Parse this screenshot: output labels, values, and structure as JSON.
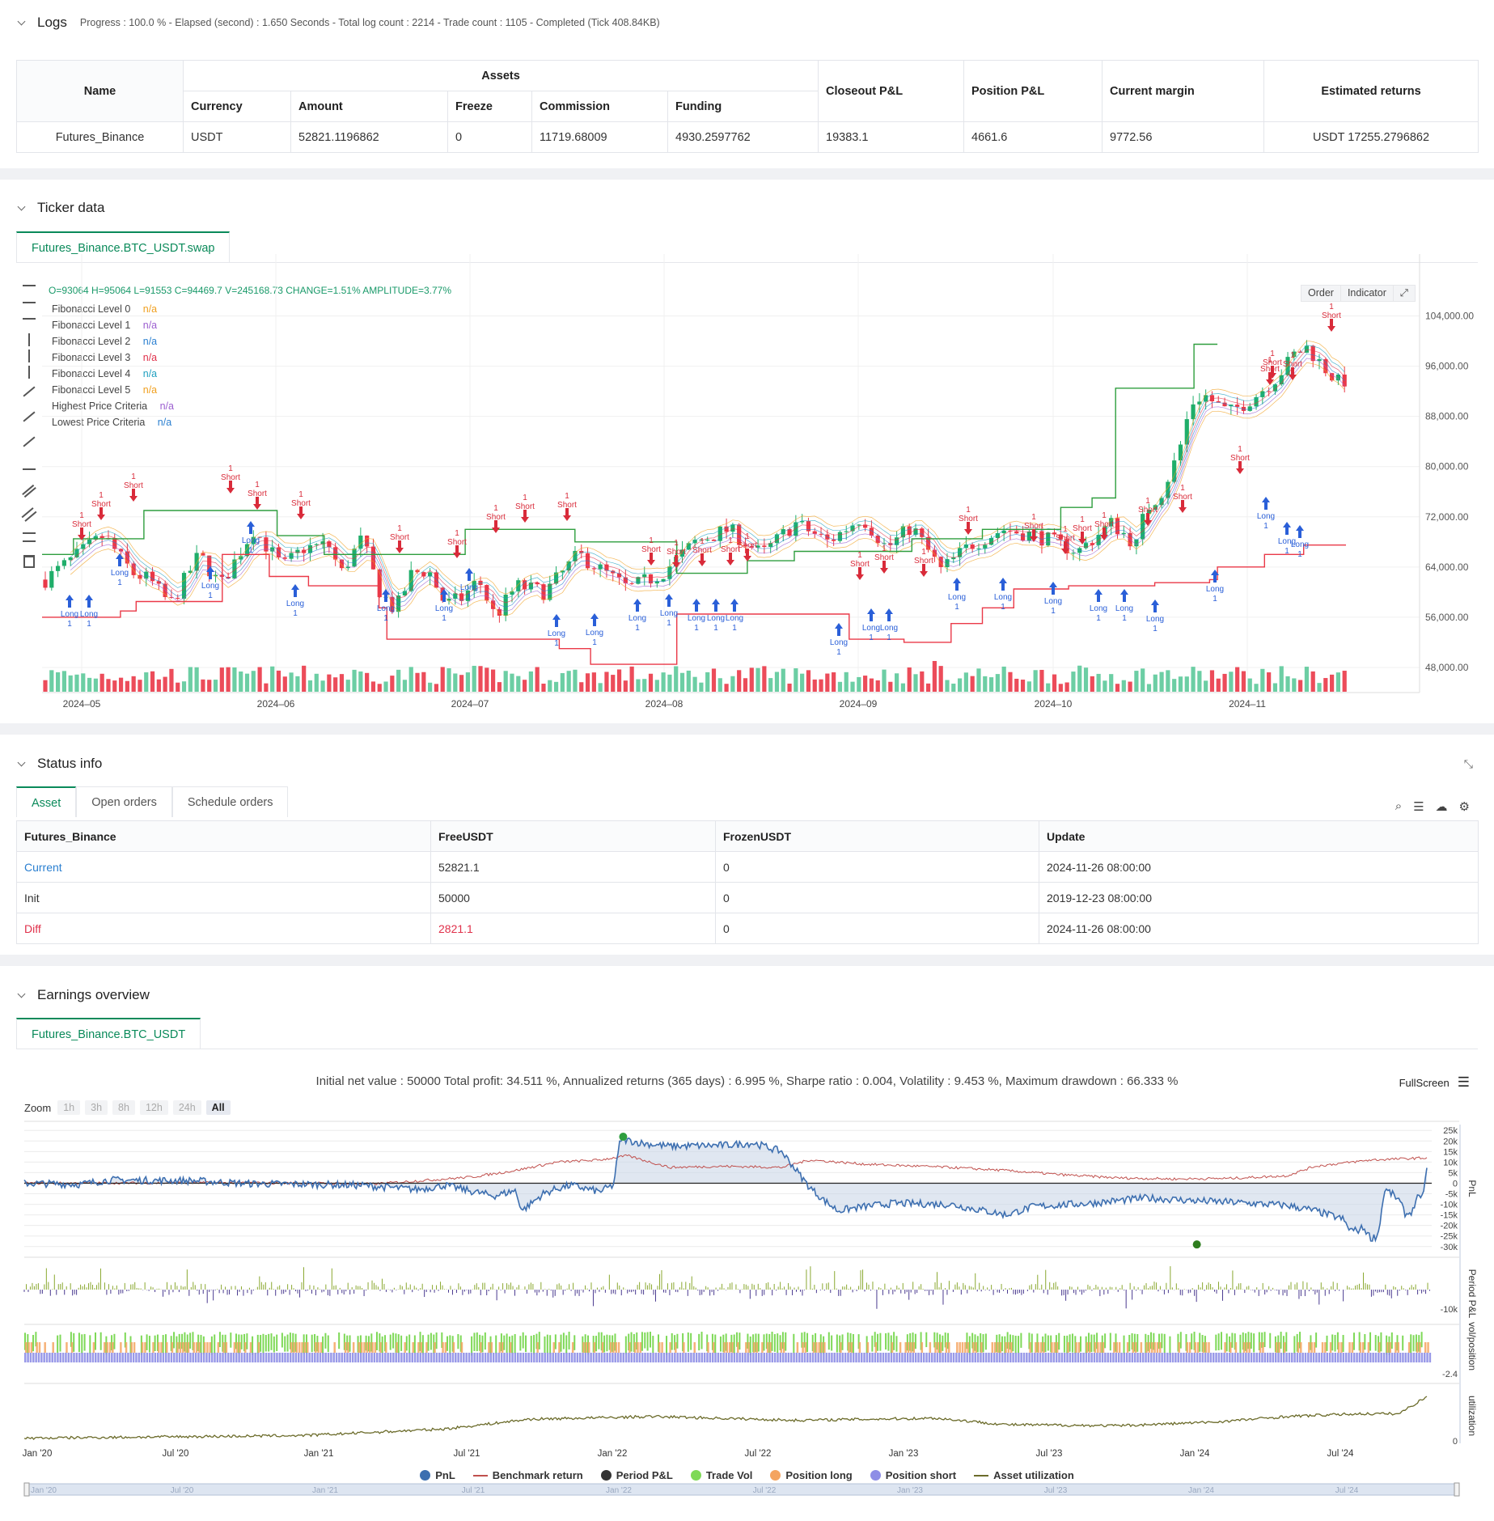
{
  "logs": {
    "title": "Logs",
    "progress": "Progress : 100.0 % - Elapsed (second) : 1.650  Seconds - Total log count : 2214 - Trade count : 1105 - Completed (Tick 408.84KB)",
    "table": {
      "name_header": "Name",
      "assets_header": "Assets",
      "sub_headers": [
        "Currency",
        "Amount",
        "Freeze",
        "Commission",
        "Funding"
      ],
      "right_headers": [
        "Closeout P&L",
        "Position P&L",
        "Current margin",
        "Estimated returns"
      ],
      "row": [
        "Futures_Binance",
        "USDT",
        "52821.1196862",
        "0",
        "11719.68009",
        "4930.2597762",
        "19383.1",
        "4661.6",
        "9772.56",
        "USDT 17255.2796862"
      ]
    }
  },
  "ticker": {
    "title": "Ticker data",
    "tab": "Futures_Binance.BTC_USDT.swap",
    "ohlc": "O=93064 H=95064 L=91553 C=94469.7 V=245168.73 CHANGE=1.51% AMPLITUDE=3.77%",
    "buttons": [
      "Order",
      "Indicator"
    ],
    "legend": [
      {
        "label": "Fibonacci Level 0",
        "value": "n/a",
        "color": "#f0a020"
      },
      {
        "label": "Fibonacci Level 1",
        "value": "n/a",
        "color": "#9c5fd0"
      },
      {
        "label": "Fibonacci Level 2",
        "value": "n/a",
        "color": "#2a7fd0"
      },
      {
        "label": "Fibonacci Level 3",
        "value": "n/a",
        "color": "#e0304a"
      },
      {
        "label": "Fibonacci Level 4",
        "value": "n/a",
        "color": "#20a0c0"
      },
      {
        "label": "Fibonacci Level 5",
        "value": "n/a",
        "color": "#f0a020"
      },
      {
        "label": "Highest Price Criteria",
        "value": "n/a",
        "color": "#9c5fd0"
      },
      {
        "label": "Lowest Price Criteria",
        "value": "n/a",
        "color": "#2a7fd0"
      }
    ],
    "price_ticks": [
      "104,000.00",
      "96,000.00",
      "88,000.00",
      "80,000.00",
      "72,000.00",
      "64,000.00",
      "56,000.00",
      "48,000.00"
    ],
    "date_ticks": [
      "2024–05",
      "2024–06",
      "2024–07",
      "2024–08",
      "2024–09",
      "2024–10",
      "2024–11"
    ],
    "signal_long": "Long",
    "signal_short": "Short",
    "signal_qty": "1"
  },
  "status": {
    "title": "Status info",
    "tabs": [
      "Asset",
      "Open orders",
      "Schedule orders"
    ],
    "headers": [
      "Futures_Binance",
      "FreeUSDT",
      "FrozenUSDT",
      "Update"
    ],
    "rows": [
      [
        "Current",
        "52821.1",
        "0",
        "2024-11-26 08:00:00"
      ],
      [
        "Init",
        "50000",
        "0",
        "2019-12-23 08:00:00"
      ],
      [
        "Diff",
        "2821.1",
        "0",
        "2024-11-26 08:00:00"
      ]
    ]
  },
  "earnings": {
    "title": "Earnings overview",
    "tab": "Futures_Binance.BTC_USDT",
    "summary": "Initial net value : 50000 Total profit: 34.511 %, Annualized returns (365 days) : 6.995 %, Sharpe ratio : 0.004, Volatility : 9.453 %, Maximum drawdown : 66.333 %",
    "fullscreen": "FullScreen",
    "zoom_label": "Zoom",
    "zoom_buttons": [
      "1h",
      "3h",
      "8h",
      "12h",
      "24h",
      "All"
    ],
    "pnl_ticks": [
      "25k",
      "20k",
      "15k",
      "10k",
      "5k",
      "0",
      "-5k",
      "-10k",
      "-15k",
      "-20k",
      "-25k",
      "-30k"
    ],
    "axis_labels": [
      "PnL",
      "Period P&L",
      "vol/position",
      "utilization"
    ],
    "period_tick": "-10k",
    "vol_tick": "-2.4",
    "util_tick": "0",
    "x_ticks": [
      "Jan '20",
      "Jul '20",
      "Jan '21",
      "Jul '21",
      "Jan '22",
      "Jul '22",
      "Jan '23",
      "Jul '23",
      "Jan '24",
      "Jul '24"
    ],
    "legend": [
      {
        "label": "PnL",
        "color": "#3d6fb0",
        "kind": "dot"
      },
      {
        "label": "Benchmark return",
        "color": "#c0504d",
        "kind": "line"
      },
      {
        "label": "Period P&L",
        "color": "#333333",
        "kind": "dot"
      },
      {
        "label": "Trade Vol",
        "color": "#7ed957",
        "kind": "dot"
      },
      {
        "label": "Position long",
        "color": "#f4a460",
        "kind": "dot"
      },
      {
        "label": "Position short",
        "color": "#8e8ee6",
        "kind": "dot"
      },
      {
        "label": "Asset utilization",
        "color": "#6b6b2a",
        "kind": "line"
      }
    ]
  }
}
